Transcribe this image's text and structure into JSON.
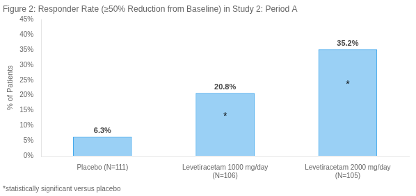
{
  "chart_data": {
    "type": "bar",
    "title": "Figure 2: Responder Rate (≥50% Reduction from Baseline) in Study 2: Period A",
    "categories": [
      "Placebo (N=111)",
      "Levetiracetam 1000 mg/day\n(N=106)",
      "Levetiracetam 2000 mg/day\n(N=105)"
    ],
    "values": [
      6.3,
      20.8,
      35.2
    ],
    "value_labels": [
      "6.3%",
      "20.8%",
      "35.2%"
    ],
    "data_labels": true,
    "ylabel": "% of Patients",
    "ylim": [
      0,
      45
    ],
    "yticks": [
      {
        "value": 0,
        "label": "0%"
      },
      {
        "value": 5,
        "label": "5%"
      },
      {
        "value": 10,
        "label": "10%"
      },
      {
        "value": 15,
        "label": "15%"
      },
      {
        "value": 20,
        "label": "20%"
      },
      {
        "value": 25,
        "label": "25%"
      },
      {
        "value": 30,
        "label": "30%"
      },
      {
        "value": 35,
        "label": "35%"
      },
      {
        "value": 40,
        "label": "40%"
      },
      {
        "value": 45,
        "label": "45%"
      }
    ],
    "annotations": [
      {
        "text": "*",
        "x": "Levetiracetam 1000 mg/day\n(N=106)",
        "y": 13.0
      },
      {
        "text": "*",
        "x": "Levetiracetam 2000 mg/day\n(N=105)",
        "y": 23.5
      }
    ],
    "footnote": "*statistically significant versus placebo",
    "grid": false
  }
}
